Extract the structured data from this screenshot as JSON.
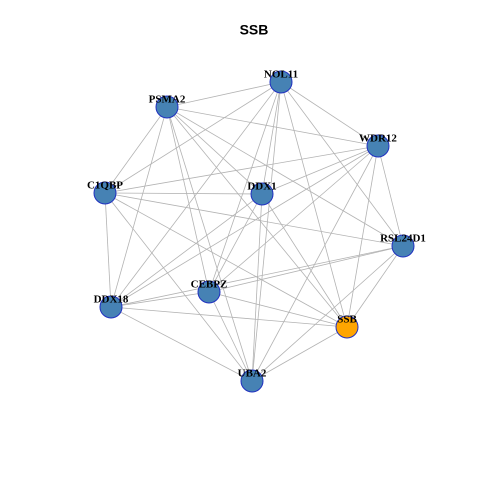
{
  "title": "SSB",
  "nodes": [
    {
      "label": "NOL11"
    },
    {
      "label": "PSMA2"
    },
    {
      "label": "WDR12"
    },
    {
      "label": "C1QBP"
    },
    {
      "label": "DDX1"
    },
    {
      "label": "RSL24D1"
    },
    {
      "label": "CEBPZ"
    },
    {
      "label": "DDX18"
    },
    {
      "label": "SSB"
    },
    {
      "label": "UBA2"
    }
  ]
}
